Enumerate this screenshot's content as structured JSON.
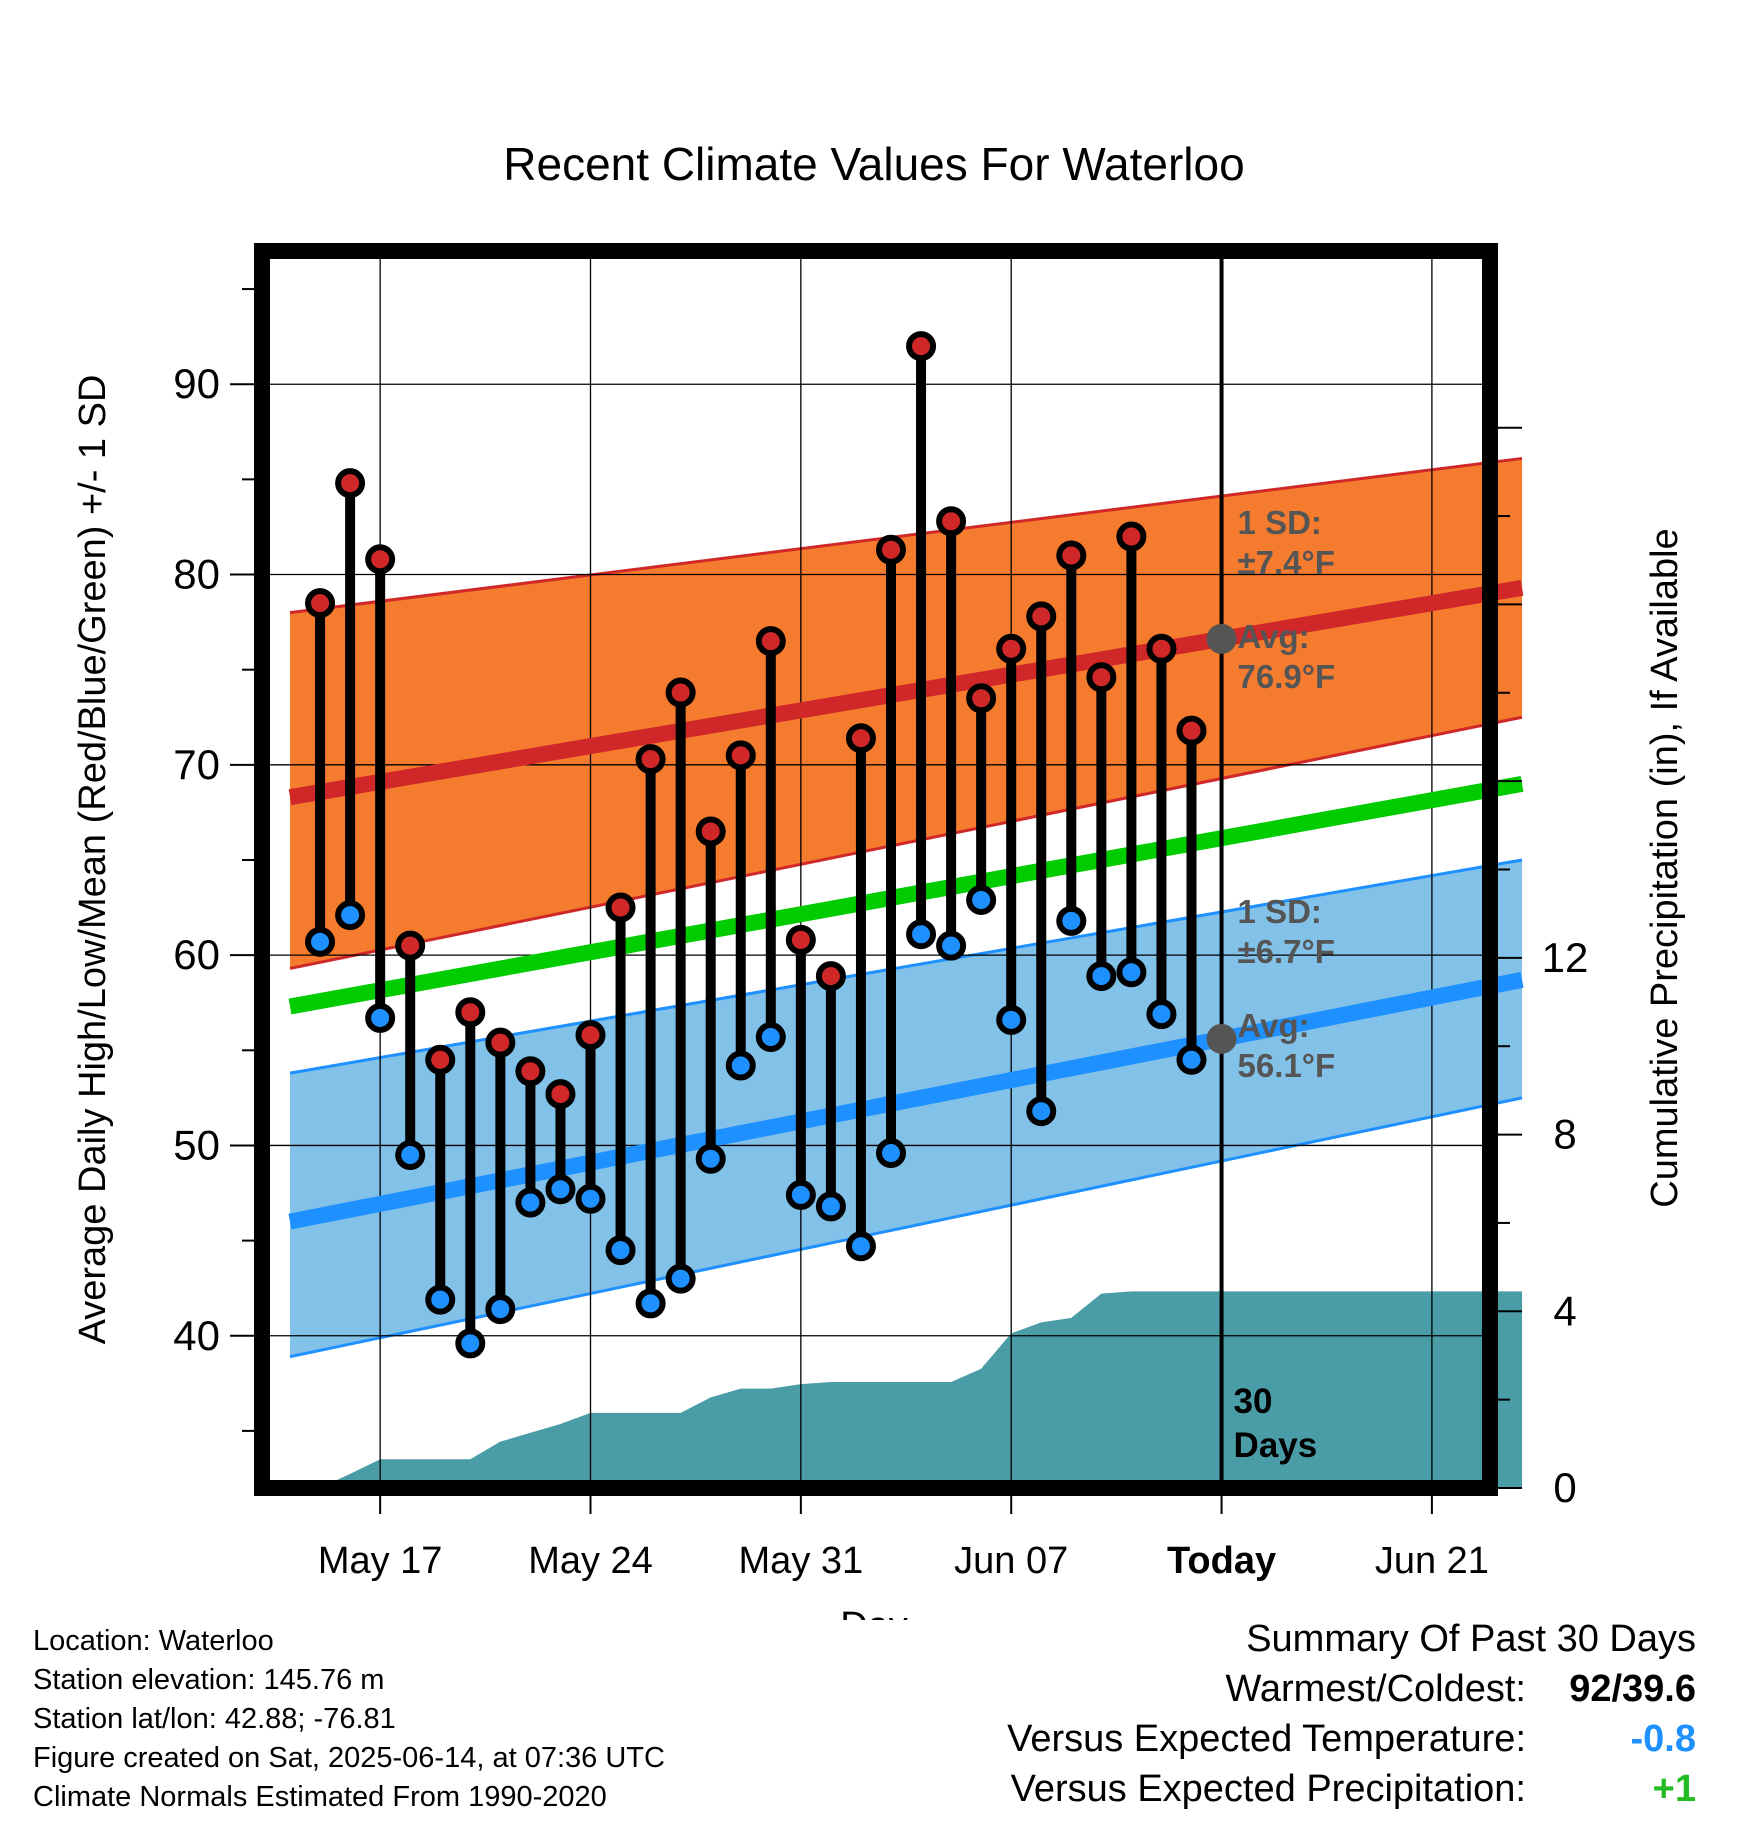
{
  "chart_data": {
    "type": "line",
    "title": "Recent Climate Values For Waterloo",
    "xlabel": "Day",
    "ylabel": "Average Daily High/Low/Mean (Red/Blue/Green) +/- 1 SD",
    "y2label": "Cumulative Precipitation (in), If Available",
    "ylim": [
      32,
      97
    ],
    "y2lim": [
      0,
      28
    ],
    "yticks": [
      40,
      50,
      60,
      70,
      80,
      90
    ],
    "y2ticks": [
      0,
      4,
      8,
      12
    ],
    "xticks": [
      "May 17",
      "May 24",
      "May 31",
      "Jun 07",
      "Today",
      "Jun 21"
    ],
    "grid": true,
    "today_marker_label": "30\nDays",
    "days": [
      "May 14",
      "May 15",
      "May 16",
      "May 17",
      "May 18",
      "May 19",
      "May 20",
      "May 21",
      "May 22",
      "May 23",
      "May 24",
      "May 25",
      "May 26",
      "May 27",
      "May 28",
      "May 29",
      "May 30",
      "May 31",
      "Jun 01",
      "Jun 02",
      "Jun 03",
      "Jun 04",
      "Jun 05",
      "Jun 06",
      "Jun 07",
      "Jun 08",
      "Jun 09",
      "Jun 10",
      "Jun 11",
      "Jun 12",
      "Jun 13",
      "Jun 14",
      "Jun 15",
      "Jun 16",
      "Jun 17",
      "Jun 18",
      "Jun 19",
      "Jun 20",
      "Jun 21",
      "Jun 22",
      "Jun 23",
      "Jun 24"
    ],
    "observed": {
      "start_day": "May 15",
      "highs": [
        78.5,
        84.8,
        80.8,
        60.5,
        54.5,
        57.0,
        55.4,
        53.9,
        52.7,
        55.8,
        62.5,
        70.3,
        73.8,
        66.5,
        70.5,
        76.5,
        60.8,
        58.9,
        71.4,
        81.3,
        92.0,
        82.8,
        73.5,
        76.1,
        77.8,
        81.0,
        74.6,
        82.0,
        76.1,
        71.8
      ],
      "lows": [
        60.7,
        62.1,
        56.7,
        49.5,
        41.9,
        39.6,
        41.4,
        47.0,
        47.7,
        47.2,
        44.5,
        41.7,
        43.0,
        49.3,
        54.2,
        55.7,
        47.4,
        46.8,
        44.7,
        49.6,
        61.1,
        60.5,
        62.9,
        56.6,
        51.8,
        61.8,
        58.9,
        59.1,
        56.9,
        54.5
      ]
    },
    "normals": {
      "start_day": "May 14",
      "high_avg": [
        68.3,
        79.3
      ],
      "high_sd_band": [
        [
          59.3,
          78.0
        ],
        [
          72.5,
          86.1
        ]
      ],
      "mean_avg": [
        57.3,
        69.0
      ],
      "low_avg": [
        46.0,
        58.7
      ],
      "low_sd_band": [
        [
          38.9,
          53.8
        ],
        [
          52.5,
          65.0
        ]
      ]
    },
    "cumulative_precip": [
      0.0,
      0.32,
      0.65,
      0.65,
      0.65,
      0.65,
      1.05,
      1.25,
      1.45,
      1.7,
      1.7,
      1.7,
      1.7,
      2.05,
      2.25,
      2.25,
      2.35,
      2.4,
      2.4,
      2.4,
      2.4,
      2.4,
      2.7,
      3.5,
      3.75,
      3.85,
      4.4,
      4.45,
      4.45,
      4.45,
      4.45,
      4.45,
      4.45,
      4.45,
      4.45,
      4.45,
      4.45,
      4.45,
      4.45,
      4.45,
      4.45
    ],
    "annotations": [
      {
        "text": "1 SD:",
        "series": "high"
      },
      {
        "text": "±7.4°F",
        "series": "high"
      },
      {
        "text": "Avg:",
        "series": "high"
      },
      {
        "text": "76.9°F",
        "series": "high"
      },
      {
        "text": "1 SD:",
        "series": "low"
      },
      {
        "text": "±6.7°F",
        "series": "low"
      },
      {
        "text": "Avg:",
        "series": "low"
      },
      {
        "text": "56.1°F",
        "series": "low"
      }
    ],
    "colors": {
      "high": "#d02828",
      "high_band": "#f57b2e",
      "low": "#1e90ff",
      "low_band": "#82c1e8",
      "mean": "#00cc00",
      "precip": "#4a9ca6",
      "marker_today": "#555555"
    }
  },
  "footer": {
    "location": "Location: Waterloo",
    "elevation": "Station elevation: 145.76 m",
    "latlon": "Station lat/lon: 42.88; -76.81",
    "created": "Figure created on Sat, 2025-06-14, at 07:36 UTC",
    "normals": "Climate Normals Estimated From 1990-2020"
  },
  "summary": {
    "title": "Summary Of Past 30 Days",
    "warmest_coldest_label": "Warmest/Coldest:",
    "warmest_coldest_value": "92/39.6",
    "temp_label": "Versus Expected Temperature:",
    "temp_value": "-0.8",
    "temp_color": "#1e90ff",
    "precip_label": "Versus Expected Precipitation:",
    "precip_value": "+1",
    "precip_color": "#22bb22"
  }
}
